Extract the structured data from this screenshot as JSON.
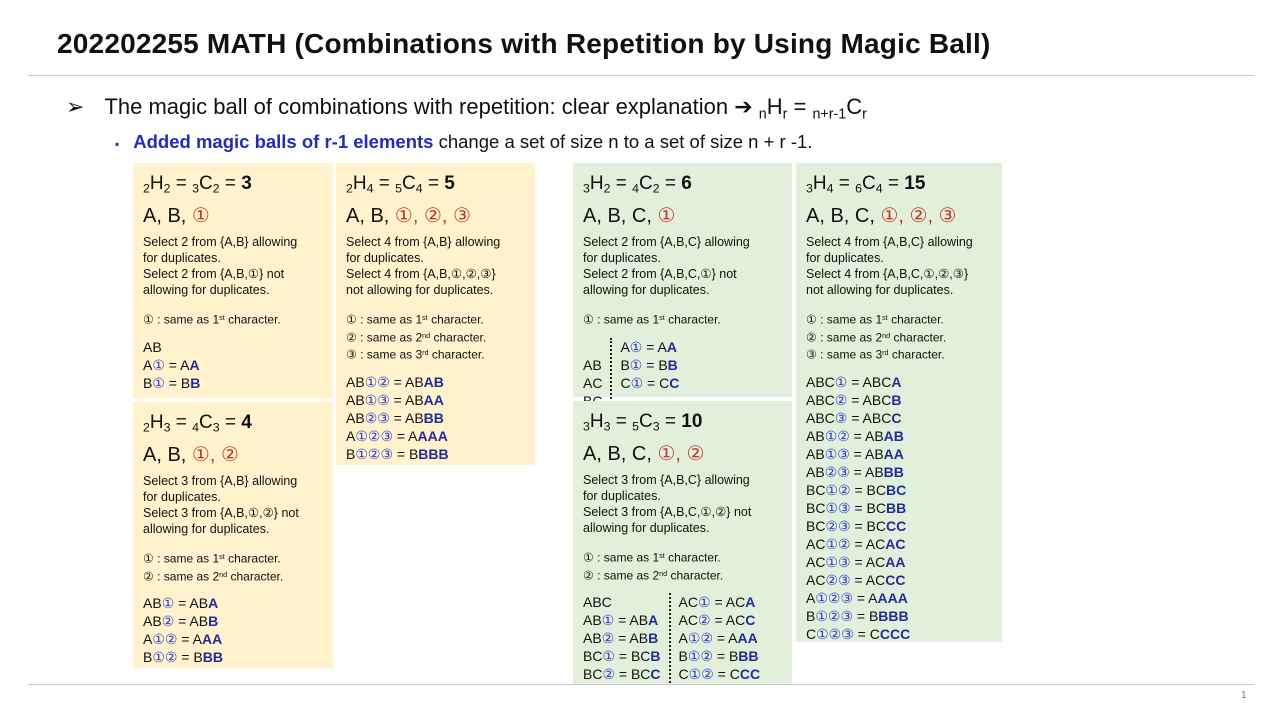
{
  "title": "202202255 MATH (Combinations with Repetition by Using Magic Ball)",
  "bullet1": {
    "marker": "➢",
    "text": "The magic ball of combinations with repetition: clear explanation ➔ ",
    "formula": {
      "n": "n",
      "H": "H",
      "r": "r",
      "eq": " = ",
      "m": "n+r-1",
      "C": "C",
      "r2": "r"
    }
  },
  "bullet2": {
    "marker": "▪",
    "highlight": "Added magic balls of r-1 elements",
    "text": "change a set of size n to a set of size n + r -1."
  },
  "page_number": "1",
  "colors": {
    "yellow": "#fff2cc",
    "green": "#e2efda",
    "red_circle": "#c0392b",
    "blue": "#1f2d9c"
  },
  "cards": [
    {
      "id": "2H2",
      "color": "y",
      "n": "2",
      "r": "2",
      "m": "3",
      "value": "3",
      "plain": "A, B, ",
      "circles": "①",
      "desc": [
        "Select 2 from {A,B} allowing",
        "for duplicates.",
        "Select 2 from {A,B,①} not",
        "allowing for duplicates."
      ],
      "notes": [
        {
          "c": "①",
          "o": "1",
          "s": "st"
        }
      ],
      "results": [
        [
          {
            "p": "AB"
          },
          {
            "p": "A",
            "c": "①",
            "b": "A",
            "x": "A"
          },
          {
            "p": "B",
            "c": "①",
            "b": "B",
            "x": "B"
          }
        ]
      ]
    },
    {
      "id": "2H3",
      "color": "y",
      "n": "2",
      "r": "3",
      "m": "4",
      "value": "4",
      "plain": "A, B, ",
      "circles": "①, ②",
      "desc": [
        "Select 3 from {A,B} allowing",
        "for duplicates.",
        "Select 3 from {A,B,①,②} not",
        "allowing for duplicates."
      ],
      "notes": [
        {
          "c": "①",
          "o": "1",
          "s": "st"
        },
        {
          "c": "②",
          "o": "2",
          "s": "nd"
        }
      ],
      "results": [
        [
          {
            "p": "AB",
            "c": "①",
            "b": "AB",
            "x": "A"
          },
          {
            "p": "AB",
            "c": "②",
            "b": "AB",
            "x": "B"
          },
          {
            "p": "A",
            "c": "①②",
            "b": "A",
            "x": "AA"
          },
          {
            "p": "B",
            "c": "①②",
            "b": "B",
            "x": "BB"
          }
        ]
      ]
    },
    {
      "id": "2H4",
      "color": "y",
      "n": "2",
      "r": "4",
      "m": "5",
      "value": "5",
      "plain": "A, B, ",
      "circles": "①, ②, ③",
      "desc": [
        "Select 4 from {A,B} allowing",
        "for duplicates.",
        "Select 4 from {A,B,①,②,③}",
        "not allowing for duplicates."
      ],
      "notes": [
        {
          "c": "①",
          "o": "1",
          "s": "st"
        },
        {
          "c": "②",
          "o": "2",
          "s": "nd"
        },
        {
          "c": "③",
          "o": "3",
          "s": "rd"
        }
      ],
      "results": [
        [
          {
            "p": "AB",
            "c": "①②",
            "b": "AB",
            "x": "AB"
          },
          {
            "p": "AB",
            "c": "①③",
            "b": "AB",
            "x": "AA"
          },
          {
            "p": "AB",
            "c": "②③",
            "b": "AB",
            "x": "BB"
          },
          {
            "p": "A",
            "c": "①②③",
            "b": "A",
            "x": "AAA"
          },
          {
            "p": "B",
            "c": "①②③",
            "b": "B",
            "x": "BBB"
          }
        ]
      ]
    },
    {
      "id": "3H2",
      "color": "g",
      "n": "3",
      "r": "2",
      "m": "4",
      "value": "6",
      "plain": "A, B, C, ",
      "circles": "①",
      "desc": [
        "Select 2 from {A,B,C} allowing",
        "for duplicates.",
        "Select 2 from {A,B,C,①} not",
        "allowing for duplicates."
      ],
      "notes": [
        {
          "c": "①",
          "o": "1",
          "s": "st"
        }
      ],
      "results": [
        [
          {
            "p": ""
          },
          {
            "p": "AB"
          },
          {
            "p": "AC"
          },
          {
            "p": "BC"
          }
        ],
        [
          {
            "p": "A",
            "c": "①",
            "b": "A",
            "x": "A"
          },
          {
            "p": "B",
            "c": "①",
            "b": "B",
            "x": "B"
          },
          {
            "p": "C",
            "c": "①",
            "b": "C",
            "x": "C"
          }
        ]
      ]
    },
    {
      "id": "3H3",
      "color": "g",
      "n": "3",
      "r": "3",
      "m": "5",
      "value": "10",
      "plain": "A, B, C, ",
      "circles": "①, ②",
      "desc": [
        "Select 3 from {A,B,C} allowing",
        "for duplicates.",
        "Select 3 from {A,B,C,①,②} not",
        "allowing for duplicates."
      ],
      "notes": [
        {
          "c": "①",
          "o": "1",
          "s": "st"
        },
        {
          "c": "②",
          "o": "2",
          "s": "nd"
        }
      ],
      "results": [
        [
          {
            "p": "ABC"
          },
          {
            "p": "AB",
            "c": "①",
            "b": "AB",
            "x": "A"
          },
          {
            "p": "AB",
            "c": "②",
            "b": "AB",
            "x": "B"
          },
          {
            "p": "BC",
            "c": "①",
            "b": "BC",
            "x": "B"
          },
          {
            "p": "BC",
            "c": "②",
            "b": "BC",
            "x": "C"
          }
        ],
        [
          {
            "p": "AC",
            "c": "①",
            "b": "AC",
            "x": "A"
          },
          {
            "p": "AC",
            "c": "②",
            "b": "AC",
            "x": "C"
          },
          {
            "p": "A",
            "c": "①②",
            "b": "A",
            "x": "AA"
          },
          {
            "p": "B",
            "c": "①②",
            "b": "B",
            "x": "BB"
          },
          {
            "p": "C",
            "c": "①②",
            "b": "C",
            "x": "CC"
          }
        ]
      ]
    },
    {
      "id": "3H4",
      "color": "g",
      "n": "3",
      "r": "4",
      "m": "6",
      "value": "15",
      "plain": "A, B, C, ",
      "circles": "①, ②, ③",
      "desc": [
        "Select 4 from {A,B,C} allowing",
        "for duplicates.",
        "Select 4 from {A,B,C,①,②,③}",
        "not allowing for duplicates."
      ],
      "notes": [
        {
          "c": "①",
          "o": "1",
          "s": "st"
        },
        {
          "c": "②",
          "o": "2",
          "s": "nd"
        },
        {
          "c": "③",
          "o": "3",
          "s": "rd"
        }
      ],
      "results": [
        [
          {
            "p": "ABC",
            "c": "①",
            "b": "ABC",
            "x": "A"
          },
          {
            "p": "ABC",
            "c": "②",
            "b": "ABC",
            "x": "B"
          },
          {
            "p": "ABC",
            "c": "③",
            "b": "ABC",
            "x": "C"
          },
          {
            "p": "AB",
            "c": "①②",
            "b": "AB",
            "x": "AB"
          },
          {
            "p": "AB",
            "c": "①③",
            "b": "AB",
            "x": "AA"
          },
          {
            "p": "AB",
            "c": "②③",
            "b": "AB",
            "x": "BB"
          },
          {
            "p": "BC",
            "c": "①②",
            "b": "BC",
            "x": "BC"
          },
          {
            "p": "BC",
            "c": "①③",
            "b": "BC",
            "x": "BB"
          },
          {
            "p": "BC",
            "c": "②③",
            "b": "BC",
            "x": "CC"
          },
          {
            "p": "AC",
            "c": "①②",
            "b": "AC",
            "x": "AC"
          },
          {
            "p": "AC",
            "c": "①③",
            "b": "AC",
            "x": "AA"
          },
          {
            "p": "AC",
            "c": "②③",
            "b": "AC",
            "x": "CC"
          },
          {
            "p": "A",
            "c": "①②③",
            "b": "A",
            "x": "AAA"
          },
          {
            "p": "B",
            "c": "①②③",
            "b": "B",
            "x": "BBB"
          },
          {
            "p": "C",
            "c": "①②③",
            "b": "C",
            "x": "CCC"
          }
        ]
      ]
    }
  ],
  "note_text": {
    "mid": " : same as ",
    "tail": " character."
  }
}
